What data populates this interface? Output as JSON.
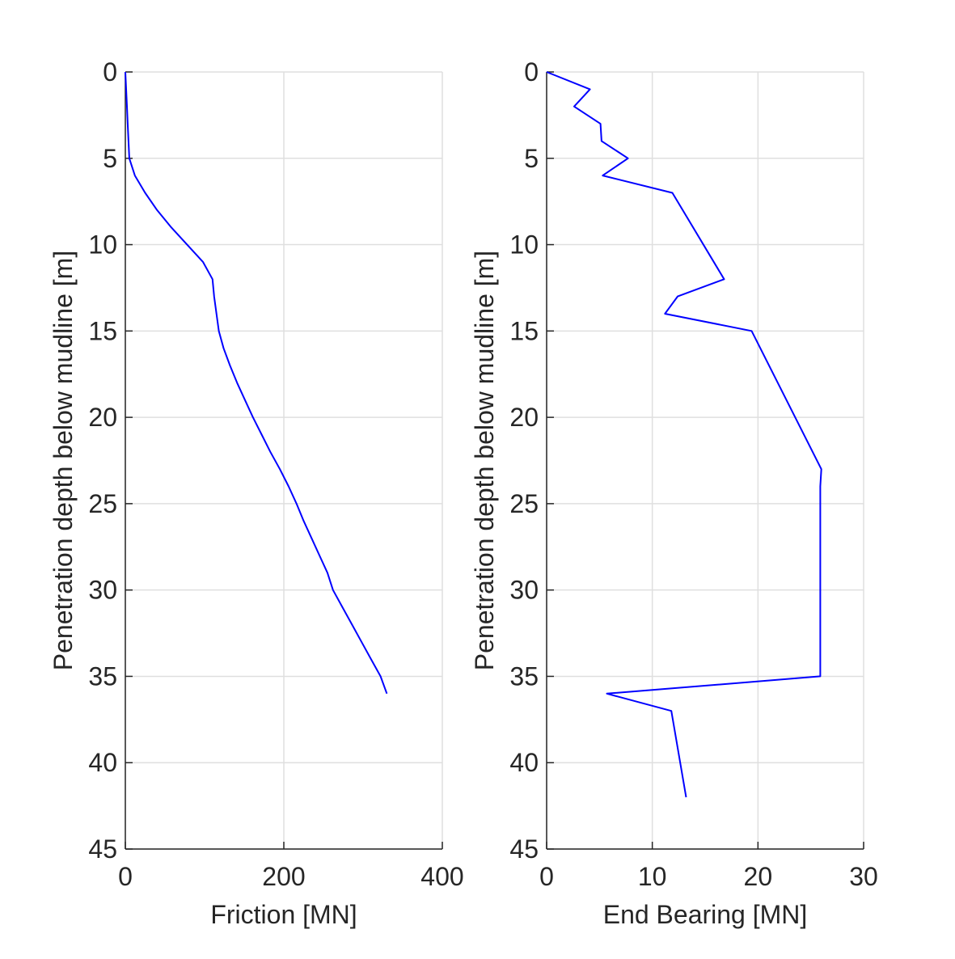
{
  "chart_data": [
    {
      "type": "line",
      "xlabel": "Friction [MN]",
      "ylabel": "Penetration depth below mudline [m]",
      "xlim": [
        0,
        400
      ],
      "ylim": [
        0,
        45
      ],
      "y_reversed": true,
      "x_ticks": [
        0,
        200,
        400
      ],
      "y_ticks": [
        0,
        5,
        10,
        15,
        20,
        25,
        30,
        35,
        40,
        45
      ],
      "grid": true,
      "line_color": "#0000ff",
      "series": [
        {
          "x": [
            0,
            1,
            2,
            3,
            5,
            12,
            25,
            40,
            58,
            78,
            98,
            110,
            112,
            115,
            118,
            124,
            132,
            141,
            151,
            161,
            172,
            183,
            195,
            206,
            216,
            225,
            235,
            245,
            255,
            262,
            274,
            286,
            298,
            310,
            322,
            330
          ],
          "y": [
            0,
            1,
            2,
            3,
            5,
            6,
            7,
            8,
            9,
            10,
            11,
            12,
            13,
            14,
            15,
            16,
            17,
            18,
            19,
            20,
            21,
            22,
            23,
            24,
            25,
            26,
            27,
            28,
            29,
            30,
            31,
            32,
            33,
            34,
            35,
            36
          ]
        }
      ]
    },
    {
      "type": "line",
      "xlabel": "End Bearing [MN]",
      "ylabel": "Penetration depth below mudline [m]",
      "xlim": [
        0,
        30
      ],
      "ylim": [
        0,
        45
      ],
      "y_reversed": true,
      "x_ticks": [
        0,
        10,
        20,
        30
      ],
      "y_ticks": [
        0,
        5,
        10,
        15,
        20,
        25,
        30,
        35,
        40,
        45
      ],
      "grid": true,
      "line_color": "#0000ff",
      "series": [
        {
          "x": [
            0,
            4.1,
            2.6,
            5.1,
            5.2,
            7.7,
            5.3,
            11.9,
            16.8,
            12.4,
            11.2,
            19.4,
            26.0,
            25.9,
            25.9,
            5.7,
            11.8,
            13.2
          ],
          "y": [
            0,
            1,
            2,
            3,
            4,
            5,
            6,
            7,
            12,
            13,
            14,
            15,
            23,
            24,
            35,
            36,
            37,
            42
          ]
        }
      ]
    }
  ]
}
